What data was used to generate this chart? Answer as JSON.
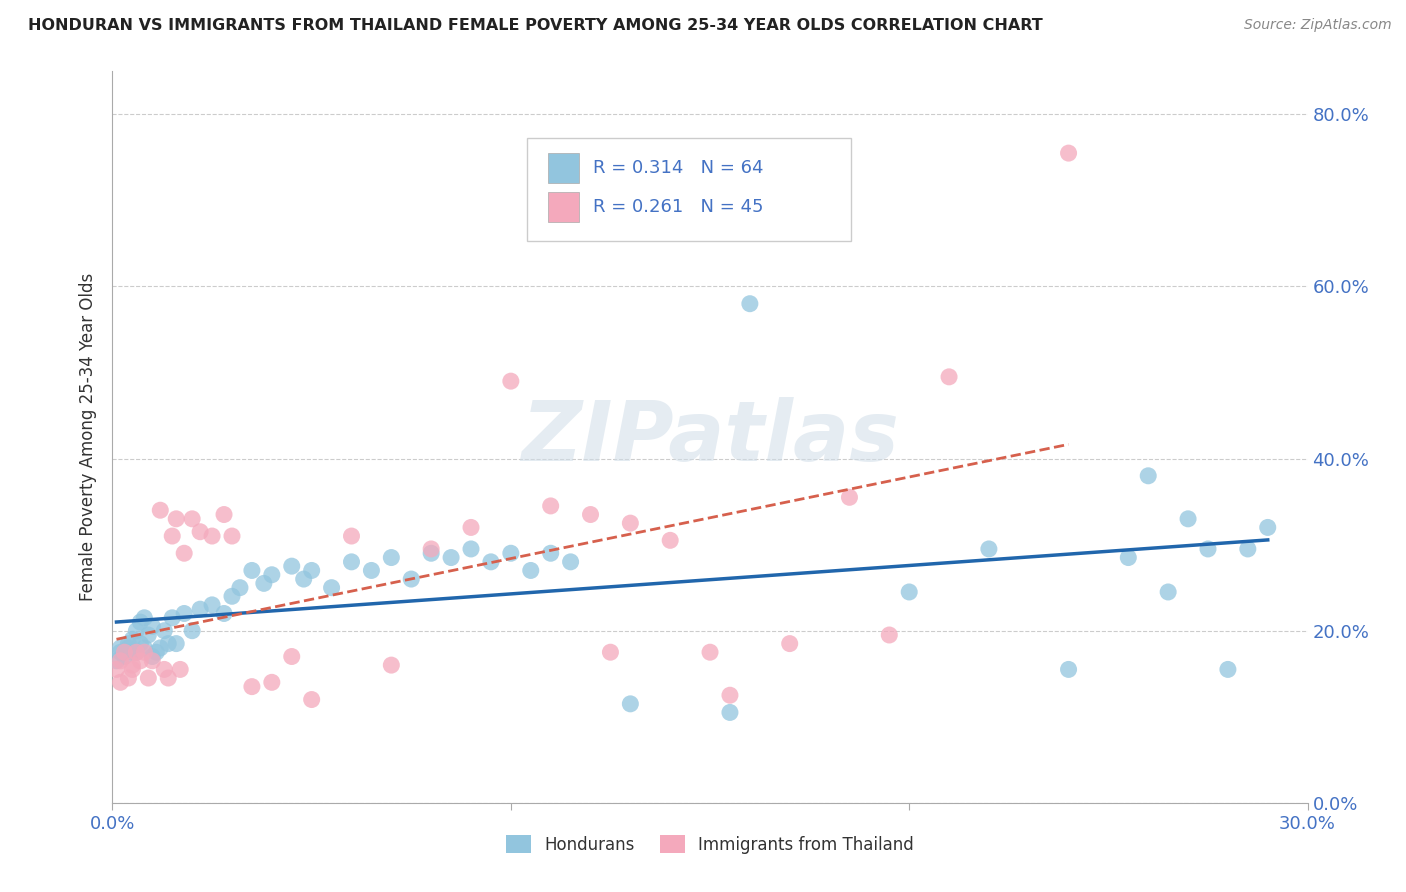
{
  "title": "HONDURAN VS IMMIGRANTS FROM THAILAND FEMALE POVERTY AMONG 25-34 YEAR OLDS CORRELATION CHART",
  "source": "Source: ZipAtlas.com",
  "ylabel": "Female Poverty Among 25-34 Year Olds",
  "xlim": [
    0.0,
    0.3
  ],
  "ylim": [
    0.0,
    0.85
  ],
  "yticks": [
    0.0,
    0.2,
    0.4,
    0.6,
    0.8
  ],
  "legend_labels": [
    "Hondurans",
    "Immigrants from Thailand"
  ],
  "blue_color": "#92c5de",
  "pink_color": "#f4a9bc",
  "blue_line_color": "#2166ac",
  "pink_line_color": "#d6604d",
  "watermark_text": "ZIPatlas",
  "blue_x": [
    0.001,
    0.002,
    0.002,
    0.003,
    0.003,
    0.004,
    0.004,
    0.005,
    0.005,
    0.006,
    0.006,
    0.007,
    0.007,
    0.008,
    0.008,
    0.009,
    0.01,
    0.01,
    0.011,
    0.012,
    0.013,
    0.014,
    0.015,
    0.016,
    0.018,
    0.02,
    0.022,
    0.025,
    0.028,
    0.03,
    0.032,
    0.035,
    0.038,
    0.04,
    0.045,
    0.048,
    0.05,
    0.055,
    0.06,
    0.065,
    0.07,
    0.075,
    0.08,
    0.085,
    0.09,
    0.095,
    0.1,
    0.105,
    0.11,
    0.115,
    0.13,
    0.155,
    0.16,
    0.2,
    0.22,
    0.24,
    0.255,
    0.26,
    0.265,
    0.27,
    0.275,
    0.28,
    0.285,
    0.29
  ],
  "blue_y": [
    0.165,
    0.175,
    0.18,
    0.175,
    0.17,
    0.18,
    0.185,
    0.175,
    0.19,
    0.175,
    0.2,
    0.185,
    0.21,
    0.18,
    0.215,
    0.195,
    0.205,
    0.17,
    0.175,
    0.18,
    0.2,
    0.185,
    0.215,
    0.185,
    0.22,
    0.2,
    0.225,
    0.23,
    0.22,
    0.24,
    0.25,
    0.27,
    0.255,
    0.265,
    0.275,
    0.26,
    0.27,
    0.25,
    0.28,
    0.27,
    0.285,
    0.26,
    0.29,
    0.285,
    0.295,
    0.28,
    0.29,
    0.27,
    0.29,
    0.28,
    0.115,
    0.105,
    0.58,
    0.245,
    0.295,
    0.155,
    0.285,
    0.38,
    0.245,
    0.33,
    0.295,
    0.155,
    0.295,
    0.32
  ],
  "pink_x": [
    0.001,
    0.002,
    0.002,
    0.003,
    0.004,
    0.005,
    0.005,
    0.006,
    0.007,
    0.008,
    0.009,
    0.01,
    0.012,
    0.013,
    0.014,
    0.015,
    0.016,
    0.017,
    0.018,
    0.02,
    0.022,
    0.025,
    0.028,
    0.03,
    0.035,
    0.04,
    0.045,
    0.05,
    0.06,
    0.07,
    0.08,
    0.09,
    0.1,
    0.11,
    0.12,
    0.125,
    0.13,
    0.14,
    0.15,
    0.155,
    0.17,
    0.185,
    0.195,
    0.21,
    0.24
  ],
  "pink_y": [
    0.155,
    0.165,
    0.14,
    0.175,
    0.145,
    0.16,
    0.155,
    0.175,
    0.165,
    0.175,
    0.145,
    0.165,
    0.34,
    0.155,
    0.145,
    0.31,
    0.33,
    0.155,
    0.29,
    0.33,
    0.315,
    0.31,
    0.335,
    0.31,
    0.135,
    0.14,
    0.17,
    0.12,
    0.31,
    0.16,
    0.295,
    0.32,
    0.49,
    0.345,
    0.335,
    0.175,
    0.325,
    0.305,
    0.175,
    0.125,
    0.185,
    0.355,
    0.195,
    0.495,
    0.755
  ]
}
